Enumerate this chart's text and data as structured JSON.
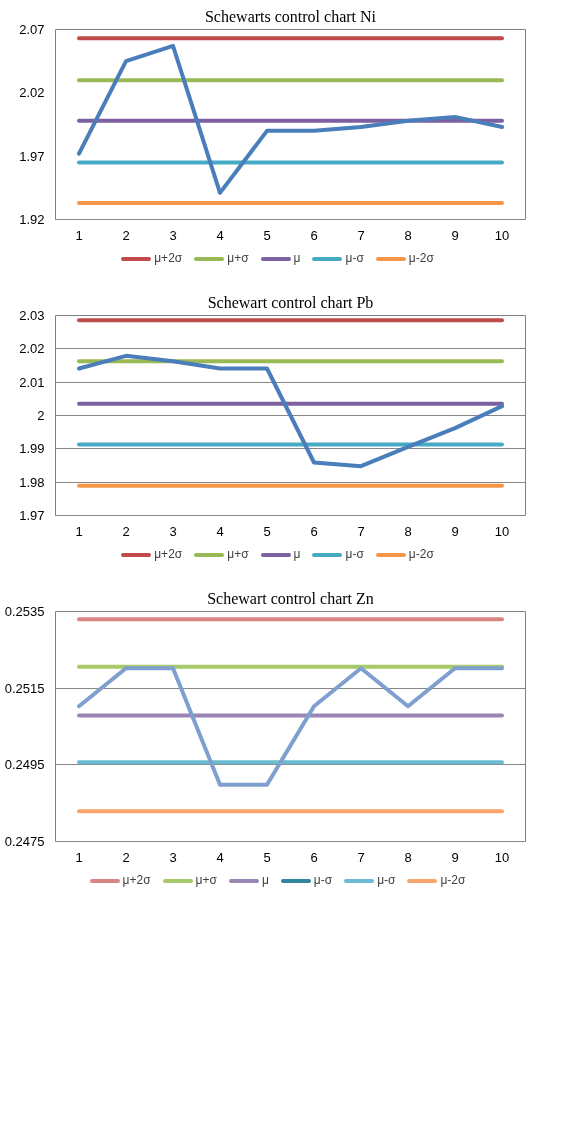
{
  "chart_data": [
    {
      "type": "line",
      "title": "Schewarts control chart Ni",
      "categories": [
        "1",
        "2",
        "3",
        "4",
        "5",
        "6",
        "7",
        "8",
        "9",
        "10"
      ],
      "ylim": [
        1.92,
        2.07
      ],
      "yticks": [
        1.92,
        1.97,
        2.02,
        2.07
      ],
      "grid": false,
      "legend": "bottom",
      "marker": "none",
      "line_style": "solid",
      "series": [
        {
          "name": "μ+2σ",
          "color": "#be4b48",
          "values": [
            2.063,
            2.063,
            2.063,
            2.063,
            2.063,
            2.063,
            2.063,
            2.063,
            2.063,
            2.063
          ]
        },
        {
          "name": "μ+σ",
          "color": "#98b954",
          "values": [
            2.03,
            2.03,
            2.03,
            2.03,
            2.03,
            2.03,
            2.03,
            2.03,
            2.03,
            2.03
          ]
        },
        {
          "name": "μ",
          "color": "#7d60a0",
          "values": [
            1.998,
            1.998,
            1.998,
            1.998,
            1.998,
            1.998,
            1.998,
            1.998,
            1.998,
            1.998
          ]
        },
        {
          "name": "μ-σ",
          "color": "#46aac5",
          "values": [
            1.965,
            1.965,
            1.965,
            1.965,
            1.965,
            1.965,
            1.965,
            1.965,
            1.965,
            1.965
          ]
        },
        {
          "name": "μ-2σ",
          "color": "#f79646",
          "values": [
            1.933,
            1.933,
            1.933,
            1.933,
            1.933,
            1.933,
            1.933,
            1.933,
            1.933,
            1.933
          ]
        },
        {
          "color": "#4a7ebb",
          "values": [
            1.972,
            2.045,
            2.057,
            1.941,
            1.99,
            1.99,
            1.993,
            1.998,
            2.001,
            1.993
          ]
        }
      ]
    },
    {
      "type": "line",
      "title": "Schewart control chart Pb",
      "categories": [
        "1",
        "2",
        "3",
        "4",
        "5",
        "6",
        "7",
        "8",
        "9",
        "10"
      ],
      "ylim": [
        1.97,
        2.03
      ],
      "yticks": [
        1.97,
        1.98,
        1.99,
        {
          "value": 2.0,
          "label": "2"
        },
        2.01,
        2.02,
        2.03
      ],
      "grid": "y",
      "legend": "bottom",
      "marker": "none",
      "line_style": "solid",
      "series": [
        {
          "name": "μ+2σ",
          "color": "#be4b48",
          "values": [
            2.0286,
            2.0286,
            2.0286,
            2.0286,
            2.0286,
            2.0286,
            2.0286,
            2.0286,
            2.0286,
            2.0286
          ]
        },
        {
          "name": "μ+σ",
          "color": "#98b954",
          "values": [
            2.0163,
            2.0163,
            2.0163,
            2.0163,
            2.0163,
            2.0163,
            2.0163,
            2.0163,
            2.0163,
            2.0163
          ]
        },
        {
          "name": "μ",
          "color": "#7d60a0",
          "values": [
            2.0035,
            2.0035,
            2.0035,
            2.0035,
            2.0035,
            2.0035,
            2.0035,
            2.0035,
            2.0035,
            2.0035
          ]
        },
        {
          "name": "μ-σ",
          "color": "#46aac5",
          "values": [
            1.9913,
            1.9913,
            1.9913,
            1.9913,
            1.9913,
            1.9913,
            1.9913,
            1.9913,
            1.9913,
            1.9913
          ]
        },
        {
          "name": "μ-2σ",
          "color": "#f79646",
          "values": [
            1.9789,
            1.9789,
            1.9789,
            1.9789,
            1.9789,
            1.9789,
            1.9789,
            1.9789,
            1.9789,
            1.9789
          ]
        },
        {
          "color": "#4a7ebb",
          "values": [
            2.0141,
            2.0179,
            2.0163,
            2.0141,
            2.0141,
            1.9859,
            1.9848,
            1.9906,
            1.9962,
            2.0028
          ]
        }
      ]
    },
    {
      "type": "line",
      "title": "Schewart control chart Zn",
      "categories": [
        "1",
        "2",
        "3",
        "4",
        "5",
        "6",
        "7",
        "8",
        "9",
        "10"
      ],
      "ylim": [
        0.2475,
        0.2535
      ],
      "yticks": [
        0.2475,
        0.2495,
        0.2515,
        0.2535
      ],
      "grid": "y",
      "legend": "bottom",
      "marker": "none",
      "line_style": "solid",
      "series": [
        {
          "name": "μ+2σ",
          "color": "#d98683",
          "values": [
            0.2533,
            0.2533,
            0.2533,
            0.2533,
            0.2533,
            0.2533,
            0.2533,
            0.2533,
            0.2533,
            0.2533
          ]
        },
        {
          "name": "μ+σ",
          "color": "#a6c96a",
          "values": [
            0.25206,
            0.25206,
            0.25206,
            0.25206,
            0.25206,
            0.25206,
            0.25206,
            0.25206,
            0.25206,
            0.25206
          ]
        },
        {
          "name": "μ",
          "color": "#9a86b4",
          "values": [
            0.25079,
            0.25079,
            0.25079,
            0.25079,
            0.25079,
            0.25079,
            0.25079,
            0.25079,
            0.25079,
            0.25079
          ]
        },
        {
          "name": "μ-σ",
          "color": "#31859c",
          "values": [
            null,
            null,
            null,
            null,
            null,
            null,
            null,
            null,
            null,
            null
          ]
        },
        {
          "name": "μ-σ",
          "color": "#6bbcd1",
          "values": [
            0.24957,
            0.24957,
            0.24957,
            0.24957,
            0.24957,
            0.24957,
            0.24957,
            0.24957,
            0.24957,
            0.24957
          ]
        },
        {
          "name": "μ-2σ",
          "color": "#f8a56c",
          "values": [
            0.24829,
            0.24829,
            0.24829,
            0.24829,
            0.24829,
            0.24829,
            0.24829,
            0.24829,
            0.24829,
            0.24829
          ]
        },
        {
          "color": "#7f9fcf",
          "values": [
            0.25103,
            0.25202,
            0.25202,
            0.24898,
            0.24898,
            0.25103,
            0.25202,
            0.25103,
            0.25202,
            0.25202
          ]
        }
      ]
    }
  ]
}
